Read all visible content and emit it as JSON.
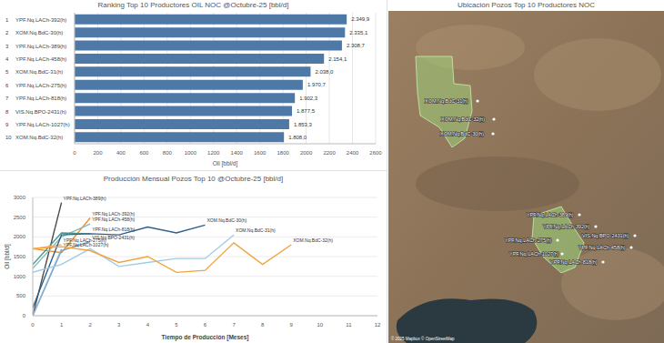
{
  "chart_data": [
    {
      "type": "bar",
      "title": "Ranking Top 10 Productores OIL NOC @Octubre-25 [bbl/d]",
      "orientation": "horizontal",
      "ranks": [
        1,
        2,
        3,
        4,
        5,
        6,
        7,
        8,
        9,
        10
      ],
      "categories": [
        "YPF.Nq.LACh-392(h)",
        "XOM.Nq.BdC-30(h)",
        "YPF.Nq.LACh-389(h)",
        "YPF.Nq.LACh-458(h)",
        "XOM.Nq.BdC-31(h)",
        "YPF.Nq.LACh-275(h)",
        "YPF.Nq.LACh-818(h)",
        "VIS.Nq.BPO-2431(h)",
        "YPF.Nq.LACh-1027(h)",
        "XOM.Nq.BdC-32(h)"
      ],
      "values": [
        2349.9,
        2335.1,
        2308.7,
        2154.1,
        2038.0,
        1970.7,
        1902.3,
        1877.5,
        1853.3,
        1808.0
      ],
      "value_labels": [
        "2.349,9",
        "2.335,1",
        "2.308,7",
        "2.154,1",
        "2.038,0",
        "1.970,7",
        "1.902,3",
        "1.877,5",
        "1.853,3",
        "1.808,0"
      ],
      "data_labels": true,
      "color": "#4e79a7",
      "x_label": "Oil [bbl/d]",
      "xlim": [
        0,
        2600
      ],
      "xticks": [
        0,
        200,
        400,
        600,
        800,
        1000,
        1200,
        1400,
        1600,
        1800,
        2000,
        2200,
        2400,
        2600
      ],
      "grid": true
    },
    {
      "type": "line",
      "title": "Producción Mensual Pozos Top 10 @Octubre-25 [bbl/d]",
      "x_label": "Tiempo de Producción [Meses]",
      "y_label": "Oil [bbl/d]",
      "x": [
        0,
        1,
        2,
        3,
        4,
        5,
        6,
        7,
        8,
        9
      ],
      "series": [
        {
          "name": "YPF.Nq.LACh-389(h)",
          "color": "#4a4a4a",
          "values": [
            0,
            2870,
            null,
            null,
            null,
            null,
            null,
            null,
            null,
            null
          ]
        },
        {
          "name": "YPF.Nq.LACh-392(h)",
          "color": "#f28e2b",
          "values": [
            1700,
            1600,
            2480,
            null,
            null,
            null,
            null,
            null,
            null,
            null
          ]
        },
        {
          "name": "YPF.Nq.LACh-458(h)",
          "color": "#86bcb6",
          "values": [
            1200,
            2000,
            2330,
            null,
            null,
            null,
            null,
            null,
            null,
            null
          ]
        },
        {
          "name": "YPF.Nq.LACh-818(h)",
          "color": "#499894",
          "values": [
            1300,
            2100,
            2080,
            null,
            null,
            null,
            null,
            null,
            null,
            null
          ]
        },
        {
          "name": "VIS.Nq.BPO-2431(h)",
          "color": "#76a4c8",
          "values": [
            0,
            1650,
            1880,
            null,
            null,
            null,
            null,
            null,
            null,
            null
          ]
        },
        {
          "name": "YPF.Nq.LACh-1027(h)",
          "color": "#8cb0d3",
          "values": [
            0,
            1690,
            null,
            null,
            null,
            null,
            null,
            null,
            null,
            null
          ]
        },
        {
          "name": "YPF.Nq.LACh-275(h)",
          "color": "#f5b06a",
          "values": [
            1700,
            1800,
            null,
            null,
            null,
            null,
            null,
            null,
            null,
            null
          ]
        },
        {
          "name": "XOM.Nq.BdC-30(h)",
          "color": "#2f5f8a",
          "values": [
            200,
            2050,
            2080,
            2050,
            2250,
            2100,
            2300,
            null,
            null,
            null
          ]
        },
        {
          "name": "XOM.Nq.BdC-31(h)",
          "color": "#a0cbe8",
          "values": [
            1100,
            1300,
            1700,
            1250,
            1350,
            1450,
            1450,
            2050,
            null,
            null
          ]
        },
        {
          "name": "XOM.Nq.BdC-32(h)",
          "color": "#f1a340",
          "values": [
            1700,
            1750,
            1650,
            1350,
            1500,
            1100,
            1150,
            1850,
            1300,
            1800
          ]
        }
      ],
      "xlim": [
        0,
        12
      ],
      "xticks": [
        0,
        1,
        2,
        3,
        4,
        5,
        6,
        7,
        8,
        9,
        10,
        11,
        12
      ],
      "ylim": [
        0,
        3000
      ],
      "yticks": [
        0,
        500,
        1000,
        1500,
        2000,
        2500,
        3000
      ],
      "grid": true
    }
  ],
  "map": {
    "title": "Ubicación Pozos Top 10 Productores NOC",
    "labels": [
      "XOM.Nq.BdC-31(h)",
      "XOM.Nq.BdC-32(h)",
      "XOM.Nq.BdC-30(h)",
      "YPF.Nq.LACh-389(h)",
      "YPF.Nq.LACh-392(h)",
      "VIS.Nq.BPO-2431(h)",
      "YPF.Nq.LACh-275(h)",
      "YPF.Nq.LACh-458(h)",
      "YPF.Nq.LACh-1027(h)",
      "YPF.Nq.LACh-818(h)"
    ],
    "attribution": "© 2025 Mapbox © OpenStreetMap"
  }
}
